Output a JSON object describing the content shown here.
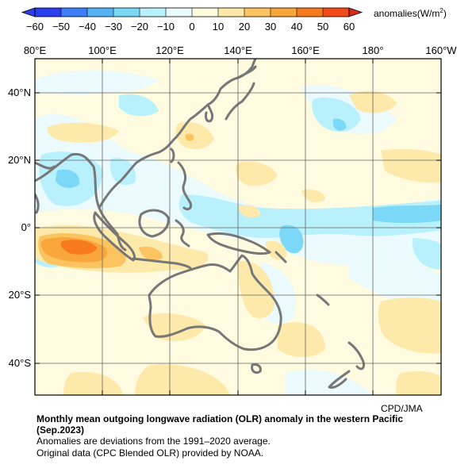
{
  "colorbar": {
    "ticks": [
      "−60",
      "−50",
      "−40",
      "−30",
      "−20",
      "−10",
      "0",
      "10",
      "20",
      "30",
      "40",
      "50",
      "60"
    ],
    "colors": [
      "#2a3ff0",
      "#3c7ef6",
      "#55b2f5",
      "#7cd8f7",
      "#b8f0fb",
      "#eafafd",
      "#fffbe0",
      "#fde9aa",
      "#fcc460",
      "#f9a63a",
      "#f77a1c",
      "#f24a17"
    ],
    "unit_prefix": "anomalies(W/m",
    "unit_sup": "2",
    "unit_suffix": ")"
  },
  "map": {
    "lon_labels": [
      "80°E",
      "100°E",
      "120°E",
      "140°E",
      "160°E",
      "180°",
      "160°W"
    ],
    "lat_labels": [
      "40°N",
      "20°N",
      "0°",
      "20°S",
      "40°S"
    ],
    "credit": "CPD/JMA"
  },
  "caption": {
    "title_line1": "Monthly mean outgoing longwave radiation (OLR) anomaly in the western Pacific",
    "title_line2": "(Sep.2023)",
    "note1": "Anomalies are deviations from the 1991–2020 average.",
    "note2": "Original data (CPC Blended OLR) provided by NOAA."
  }
}
